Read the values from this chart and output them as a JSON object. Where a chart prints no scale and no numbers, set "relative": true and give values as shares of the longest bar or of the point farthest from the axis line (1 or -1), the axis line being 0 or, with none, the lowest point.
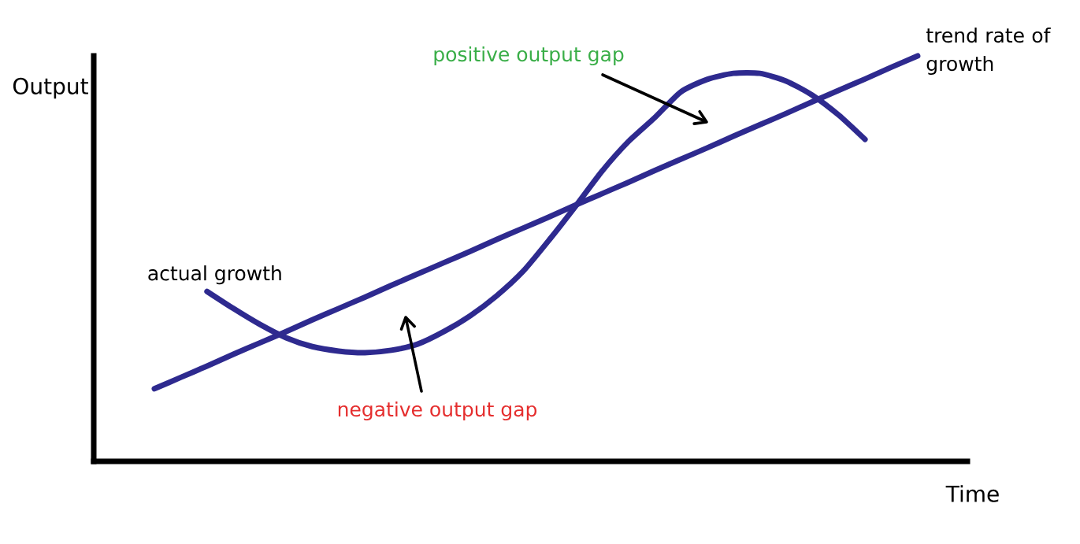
{
  "chart_data": {
    "type": "line",
    "relative": true,
    "xlabel": "Time",
    "ylabel": "Output",
    "line_style": "solid",
    "categories": [
      null,
      null,
      null,
      null,
      null,
      null,
      null,
      null,
      null,
      null,
      null,
      null,
      null,
      null,
      null,
      null,
      null,
      null,
      null,
      null,
      null,
      null,
      null,
      null,
      null,
      null,
      null,
      null,
      null,
      null
    ],
    "series": [
      {
        "name": "actual growth",
        "color": "#2e2a8f",
        "values": [
          null,
          null,
          0.419,
          0.377,
          0.338,
          0.305,
          0.283,
          0.272,
          0.268,
          0.274,
          0.289,
          0.32,
          0.359,
          0.408,
          0.468,
          0.546,
          0.629,
          0.715,
          0.788,
          0.847,
          0.911,
          0.942,
          0.957,
          0.957,
          0.938,
          0.903,
          0.854,
          0.794,
          null,
          null
        ]
      },
      {
        "name": "trend rate of growth",
        "color": "#2e2a8f",
        "values": [
          0.179,
          0.207,
          0.235,
          0.264,
          0.292,
          0.32,
          0.349,
          0.377,
          0.405,
          0.434,
          0.462,
          0.49,
          0.518,
          0.547,
          0.575,
          0.603,
          0.632,
          0.66,
          0.688,
          0.717,
          0.745,
          0.773,
          0.802,
          0.83,
          0.858,
          0.887,
          0.915,
          0.943,
          0.972,
          1.0
        ]
      }
    ],
    "annotations": [
      "positive output gap",
      "negative output gap"
    ]
  }
}
